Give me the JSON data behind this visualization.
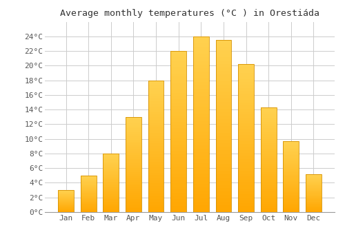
{
  "title": "Average monthly temperatures (°C ) in Orestiáda",
  "months": [
    "Jan",
    "Feb",
    "Mar",
    "Apr",
    "May",
    "Jun",
    "Jul",
    "Aug",
    "Sep",
    "Oct",
    "Nov",
    "Dec"
  ],
  "values": [
    3.0,
    5.0,
    8.0,
    13.0,
    18.0,
    22.0,
    24.0,
    23.5,
    20.2,
    14.3,
    9.7,
    5.2
  ],
  "bar_color_light": "#FFD050",
  "bar_color_dark": "#FFA500",
  "bar_edge_color": "#D49000",
  "ylim": [
    0,
    26
  ],
  "yticks": [
    0,
    2,
    4,
    6,
    8,
    10,
    12,
    14,
    16,
    18,
    20,
    22,
    24
  ],
  "ytick_labels": [
    "0°C",
    "2°C",
    "4°C",
    "6°C",
    "8°C",
    "10°C",
    "12°C",
    "14°C",
    "16°C",
    "18°C",
    "20°C",
    "22°C",
    "24°C"
  ],
  "background_color": "#ffffff",
  "plot_bg_color": "#ffffff",
  "grid_color": "#cccccc",
  "title_fontsize": 9.5,
  "tick_fontsize": 8,
  "bar_width": 0.7,
  "figsize": [
    5.0,
    3.5
  ],
  "dpi": 100
}
